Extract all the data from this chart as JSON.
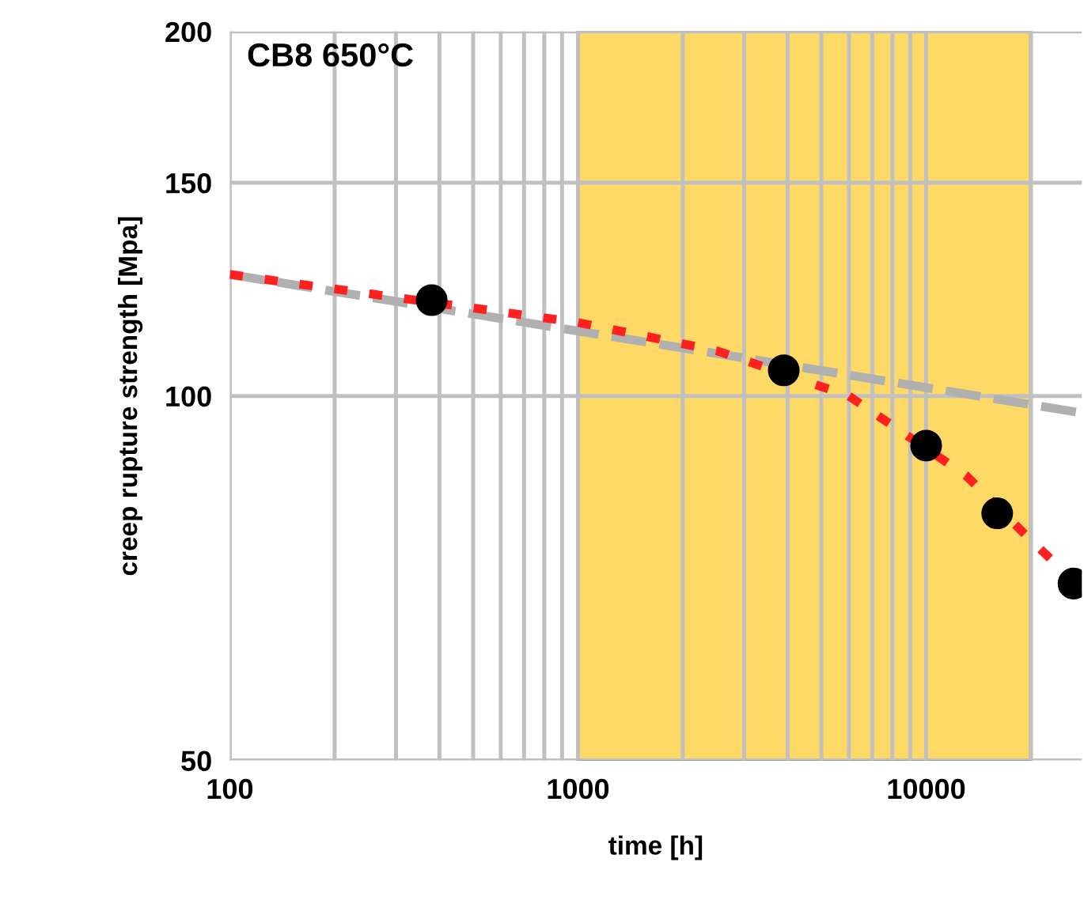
{
  "chart_data": {
    "type": "scatter",
    "title": "CB8 650°C",
    "xlabel": "time [h]",
    "ylabel": "creep rupture strength [Mpa]",
    "log": "xy",
    "xlim": [
      100,
      28000
    ],
    "ylim": [
      50,
      200
    ],
    "xticks": [
      100,
      {
        "value": 200,
        "label": null
      },
      {
        "value": 300,
        "label": null
      },
      {
        "value": 400,
        "label": null
      },
      {
        "value": 500,
        "label": null
      },
      {
        "value": 600,
        "label": null
      },
      {
        "value": 700,
        "label": null
      },
      {
        "value": 800,
        "label": null
      },
      {
        "value": 900,
        "label": null
      },
      1000,
      {
        "value": 2000,
        "label": null
      },
      {
        "value": 3000,
        "label": null
      },
      {
        "value": 4000,
        "label": null
      },
      {
        "value": 5000,
        "label": null
      },
      {
        "value": 6000,
        "label": null
      },
      {
        "value": 7000,
        "label": null
      },
      {
        "value": 8000,
        "label": null
      },
      {
        "value": 9000,
        "label": null
      },
      10000,
      {
        "value": 20000,
        "label": null
      }
    ],
    "yticks": [
      50,
      100,
      150,
      200
    ],
    "grid": true,
    "bands": [
      {
        "axis": "x",
        "from": 1000,
        "to": 20000,
        "color": "#ffd966"
      }
    ],
    "series": [
      {
        "type": "line",
        "marker": "none",
        "color": "#b0b0b0",
        "line_style": "dashed",
        "x": [
          100,
          27000
        ],
        "values": [
          126,
          97
        ]
      },
      {
        "type": "line",
        "marker": "none",
        "color": "#ff2020",
        "line_style": "dotted",
        "x": [
          100,
          1000,
          2500,
          6000,
          13000,
          20000,
          23200
        ],
        "values": [
          126,
          115,
          109,
          100,
          86,
          76,
          73
        ]
      },
      {
        "marker": "circle",
        "color": "#000000",
        "x": [
          380,
          3900,
          10000,
          16000,
          26500
        ],
        "values": [
          120,
          105,
          91,
          80,
          70
        ]
      }
    ]
  }
}
